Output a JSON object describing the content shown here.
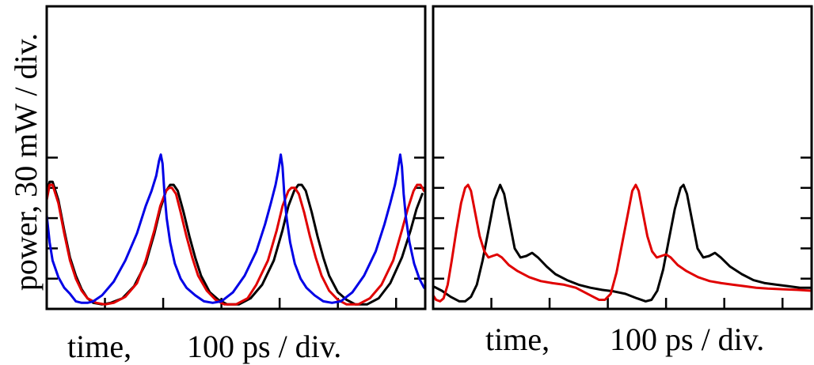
{
  "ylabel": "power, 30 mW / div.",
  "chart_data": [
    {
      "type": "line",
      "xlabel_left": "time,",
      "xlabel_right": "100 ps / div.",
      "xlim": [
        0,
        6.5
      ],
      "ylim": [
        0,
        10
      ],
      "xticks": [
        0,
        1,
        2,
        3,
        4,
        5,
        6
      ],
      "yticks": [
        0,
        1,
        2,
        3,
        4,
        5
      ],
      "series": [
        {
          "color": "#000000",
          "points": [
            [
              0.0,
              3.8
            ],
            [
              0.05,
              4.2
            ],
            [
              0.1,
              4.2
            ],
            [
              0.2,
              3.6
            ],
            [
              0.3,
              2.6
            ],
            [
              0.4,
              1.7
            ],
            [
              0.5,
              1.1
            ],
            [
              0.6,
              0.65
            ],
            [
              0.7,
              0.35
            ],
            [
              0.8,
              0.2
            ],
            [
              0.95,
              0.15
            ],
            [
              1.1,
              0.2
            ],
            [
              1.3,
              0.35
            ],
            [
              1.5,
              0.75
            ],
            [
              1.7,
              1.5
            ],
            [
              1.85,
              2.5
            ],
            [
              1.95,
              3.3
            ],
            [
              2.05,
              3.9
            ],
            [
              2.12,
              4.1
            ],
            [
              2.18,
              4.1
            ],
            [
              2.25,
              3.9
            ],
            [
              2.35,
              3.2
            ],
            [
              2.45,
              2.4
            ],
            [
              2.55,
              1.7
            ],
            [
              2.65,
              1.1
            ],
            [
              2.8,
              0.55
            ],
            [
              2.95,
              0.3
            ],
            [
              3.1,
              0.15
            ],
            [
              3.3,
              0.15
            ],
            [
              3.5,
              0.35
            ],
            [
              3.7,
              0.8
            ],
            [
              3.9,
              1.6
            ],
            [
              4.05,
              2.6
            ],
            [
              4.15,
              3.4
            ],
            [
              4.25,
              3.9
            ],
            [
              4.32,
              4.1
            ],
            [
              4.38,
              4.1
            ],
            [
              4.45,
              3.9
            ],
            [
              4.55,
              3.2
            ],
            [
              4.65,
              2.4
            ],
            [
              4.75,
              1.7
            ],
            [
              4.85,
              1.1
            ],
            [
              5.0,
              0.55
            ],
            [
              5.15,
              0.3
            ],
            [
              5.3,
              0.15
            ],
            [
              5.5,
              0.15
            ],
            [
              5.7,
              0.35
            ],
            [
              5.9,
              0.85
            ],
            [
              6.1,
              1.7
            ],
            [
              6.25,
              2.6
            ],
            [
              6.35,
              3.3
            ],
            [
              6.45,
              3.8
            ]
          ]
        },
        {
          "color": "#e00000",
          "points": [
            [
              0.0,
              3.6
            ],
            [
              0.05,
              4.1
            ],
            [
              0.1,
              4.1
            ],
            [
              0.2,
              3.5
            ],
            [
              0.3,
              2.5
            ],
            [
              0.4,
              1.6
            ],
            [
              0.5,
              1.0
            ],
            [
              0.6,
              0.6
            ],
            [
              0.7,
              0.35
            ],
            [
              0.85,
              0.2
            ],
            [
              1.0,
              0.15
            ],
            [
              1.15,
              0.2
            ],
            [
              1.35,
              0.4
            ],
            [
              1.55,
              0.85
            ],
            [
              1.7,
              1.6
            ],
            [
              1.85,
              2.6
            ],
            [
              1.95,
              3.4
            ],
            [
              2.05,
              3.9
            ],
            [
              2.1,
              4.0
            ],
            [
              2.15,
              4.0
            ],
            [
              2.22,
              3.8
            ],
            [
              2.3,
              3.2
            ],
            [
              2.4,
              2.4
            ],
            [
              2.5,
              1.7
            ],
            [
              2.6,
              1.1
            ],
            [
              2.75,
              0.6
            ],
            [
              2.9,
              0.3
            ],
            [
              3.05,
              0.15
            ],
            [
              3.25,
              0.15
            ],
            [
              3.45,
              0.35
            ],
            [
              3.6,
              0.8
            ],
            [
              3.8,
              1.6
            ],
            [
              3.95,
              2.6
            ],
            [
              4.05,
              3.4
            ],
            [
              4.15,
              3.9
            ],
            [
              4.2,
              4.0
            ],
            [
              4.26,
              4.0
            ],
            [
              4.33,
              3.8
            ],
            [
              4.42,
              3.2
            ],
            [
              4.52,
              2.4
            ],
            [
              4.62,
              1.7
            ],
            [
              4.72,
              1.1
            ],
            [
              4.85,
              0.6
            ],
            [
              5.0,
              0.3
            ],
            [
              5.15,
              0.15
            ],
            [
              5.35,
              0.15
            ],
            [
              5.55,
              0.35
            ],
            [
              5.75,
              0.8
            ],
            [
              5.95,
              1.6
            ],
            [
              6.1,
              2.6
            ],
            [
              6.2,
              3.3
            ],
            [
              6.3,
              3.9
            ],
            [
              6.36,
              4.1
            ],
            [
              6.42,
              4.1
            ],
            [
              6.48,
              3.9
            ]
          ]
        },
        {
          "color": "#0000e6",
          "points": [
            [
              0.0,
              3.1
            ],
            [
              0.05,
              2.2
            ],
            [
              0.1,
              1.6
            ],
            [
              0.2,
              1.05
            ],
            [
              0.3,
              0.7
            ],
            [
              0.4,
              0.5
            ],
            [
              0.5,
              0.25
            ],
            [
              0.6,
              0.2
            ],
            [
              0.7,
              0.2
            ],
            [
              0.8,
              0.25
            ],
            [
              0.95,
              0.45
            ],
            [
              1.15,
              0.9
            ],
            [
              1.35,
              1.6
            ],
            [
              1.55,
              2.5
            ],
            [
              1.7,
              3.4
            ],
            [
              1.8,
              3.9
            ],
            [
              1.88,
              4.4
            ],
            [
              1.93,
              4.9
            ],
            [
              1.96,
              5.1
            ],
            [
              1.99,
              4.8
            ],
            [
              2.02,
              3.9
            ],
            [
              2.06,
              3.0
            ],
            [
              2.12,
              2.2
            ],
            [
              2.2,
              1.5
            ],
            [
              2.3,
              1.0
            ],
            [
              2.4,
              0.7
            ],
            [
              2.55,
              0.45
            ],
            [
              2.7,
              0.25
            ],
            [
              2.85,
              0.2
            ],
            [
              3.0,
              0.25
            ],
            [
              3.2,
              0.55
            ],
            [
              3.4,
              1.1
            ],
            [
              3.6,
              1.9
            ],
            [
              3.75,
              2.8
            ],
            [
              3.85,
              3.5
            ],
            [
              3.93,
              4.1
            ],
            [
              3.98,
              4.6
            ],
            [
              4.02,
              5.1
            ],
            [
              4.05,
              4.7
            ],
            [
              4.08,
              3.8
            ],
            [
              4.12,
              3.0
            ],
            [
              4.18,
              2.2
            ],
            [
              4.26,
              1.5
            ],
            [
              4.36,
              1.0
            ],
            [
              4.46,
              0.7
            ],
            [
              4.6,
              0.45
            ],
            [
              4.75,
              0.25
            ],
            [
              4.9,
              0.2
            ],
            [
              5.05,
              0.25
            ],
            [
              5.25,
              0.55
            ],
            [
              5.45,
              1.1
            ],
            [
              5.65,
              1.9
            ],
            [
              5.8,
              2.8
            ],
            [
              5.9,
              3.5
            ],
            [
              5.98,
              4.1
            ],
            [
              6.03,
              4.6
            ],
            [
              6.07,
              5.1
            ],
            [
              6.1,
              4.7
            ],
            [
              6.13,
              3.8
            ],
            [
              6.17,
              3.0
            ],
            [
              6.23,
              2.2
            ],
            [
              6.31,
              1.5
            ],
            [
              6.4,
              1.0
            ],
            [
              6.48,
              0.7
            ]
          ]
        }
      ]
    },
    {
      "type": "line",
      "xlabel_left": "time,",
      "xlabel_right": "100 ps / div.",
      "xlim": [
        0,
        6.5
      ],
      "ylim": [
        0,
        10
      ],
      "xticks": [
        0,
        1,
        2,
        3,
        4,
        5,
        6
      ],
      "yticks": [
        0,
        1,
        2,
        3,
        4,
        5
      ],
      "series": [
        {
          "color": "#000000",
          "points": [
            [
              0.0,
              0.75
            ],
            [
              0.15,
              0.6
            ],
            [
              0.3,
              0.4
            ],
            [
              0.45,
              0.25
            ],
            [
              0.55,
              0.25
            ],
            [
              0.65,
              0.4
            ],
            [
              0.75,
              0.8
            ],
            [
              0.85,
              1.6
            ],
            [
              0.95,
              2.6
            ],
            [
              1.05,
              3.6
            ],
            [
              1.15,
              4.1
            ],
            [
              1.22,
              3.8
            ],
            [
              1.3,
              3.0
            ],
            [
              1.4,
              2.0
            ],
            [
              1.5,
              1.7
            ],
            [
              1.6,
              1.75
            ],
            [
              1.7,
              1.85
            ],
            [
              1.8,
              1.7
            ],
            [
              1.95,
              1.4
            ],
            [
              2.1,
              1.15
            ],
            [
              2.3,
              0.95
            ],
            [
              2.5,
              0.8
            ],
            [
              2.7,
              0.7
            ],
            [
              2.9,
              0.63
            ],
            [
              3.1,
              0.58
            ],
            [
              3.3,
              0.5
            ],
            [
              3.5,
              0.35
            ],
            [
              3.65,
              0.25
            ],
            [
              3.75,
              0.3
            ],
            [
              3.85,
              0.6
            ],
            [
              3.95,
              1.3
            ],
            [
              4.05,
              2.3
            ],
            [
              4.15,
              3.3
            ],
            [
              4.25,
              4.0
            ],
            [
              4.3,
              4.1
            ],
            [
              4.36,
              3.8
            ],
            [
              4.44,
              3.0
            ],
            [
              4.54,
              2.0
            ],
            [
              4.64,
              1.7
            ],
            [
              4.74,
              1.75
            ],
            [
              4.84,
              1.85
            ],
            [
              4.94,
              1.7
            ],
            [
              5.1,
              1.4
            ],
            [
              5.3,
              1.15
            ],
            [
              5.5,
              0.95
            ],
            [
              5.7,
              0.85
            ],
            [
              5.9,
              0.8
            ],
            [
              6.1,
              0.75
            ],
            [
              6.3,
              0.7
            ],
            [
              6.5,
              0.7
            ]
          ]
        },
        {
          "color": "#e00000",
          "points": [
            [
              0.0,
              0.45
            ],
            [
              0.05,
              0.3
            ],
            [
              0.12,
              0.25
            ],
            [
              0.18,
              0.35
            ],
            [
              0.25,
              0.8
            ],
            [
              0.32,
              1.6
            ],
            [
              0.4,
              2.6
            ],
            [
              0.48,
              3.5
            ],
            [
              0.55,
              4.0
            ],
            [
              0.6,
              4.1
            ],
            [
              0.65,
              3.9
            ],
            [
              0.72,
              3.2
            ],
            [
              0.8,
              2.4
            ],
            [
              0.88,
              1.9
            ],
            [
              0.95,
              1.7
            ],
            [
              1.02,
              1.75
            ],
            [
              1.1,
              1.8
            ],
            [
              1.18,
              1.7
            ],
            [
              1.3,
              1.45
            ],
            [
              1.45,
              1.25
            ],
            [
              1.65,
              1.05
            ],
            [
              1.85,
              0.92
            ],
            [
              2.05,
              0.85
            ],
            [
              2.25,
              0.8
            ],
            [
              2.45,
              0.7
            ],
            [
              2.6,
              0.55
            ],
            [
              2.75,
              0.4
            ],
            [
              2.85,
              0.3
            ],
            [
              2.95,
              0.3
            ],
            [
              3.05,
              0.5
            ],
            [
              3.15,
              1.2
            ],
            [
              3.25,
              2.2
            ],
            [
              3.35,
              3.2
            ],
            [
              3.42,
              3.9
            ],
            [
              3.48,
              4.1
            ],
            [
              3.53,
              3.9
            ],
            [
              3.6,
              3.2
            ],
            [
              3.68,
              2.4
            ],
            [
              3.76,
              1.9
            ],
            [
              3.84,
              1.7
            ],
            [
              3.92,
              1.75
            ],
            [
              4.0,
              1.8
            ],
            [
              4.08,
              1.7
            ],
            [
              4.2,
              1.45
            ],
            [
              4.35,
              1.25
            ],
            [
              4.55,
              1.05
            ],
            [
              4.75,
              0.92
            ],
            [
              4.95,
              0.85
            ],
            [
              5.15,
              0.8
            ],
            [
              5.35,
              0.75
            ],
            [
              5.55,
              0.7
            ],
            [
              5.75,
              0.67
            ],
            [
              6.0,
              0.65
            ],
            [
              6.25,
              0.63
            ],
            [
              6.5,
              0.6
            ]
          ]
        }
      ]
    }
  ]
}
